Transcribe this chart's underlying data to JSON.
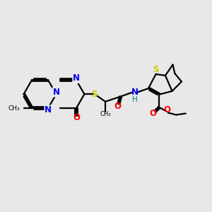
{
  "background_color": "#e8e8e8",
  "fig_size": [
    3.0,
    3.0
  ],
  "dpi": 100,
  "colors": {
    "N": "#0000ee",
    "S": "#cccc00",
    "O": "#ff0000",
    "C": "#000000",
    "H": "#008080"
  },
  "bond_lw": 1.6,
  "font_size": 7.5
}
